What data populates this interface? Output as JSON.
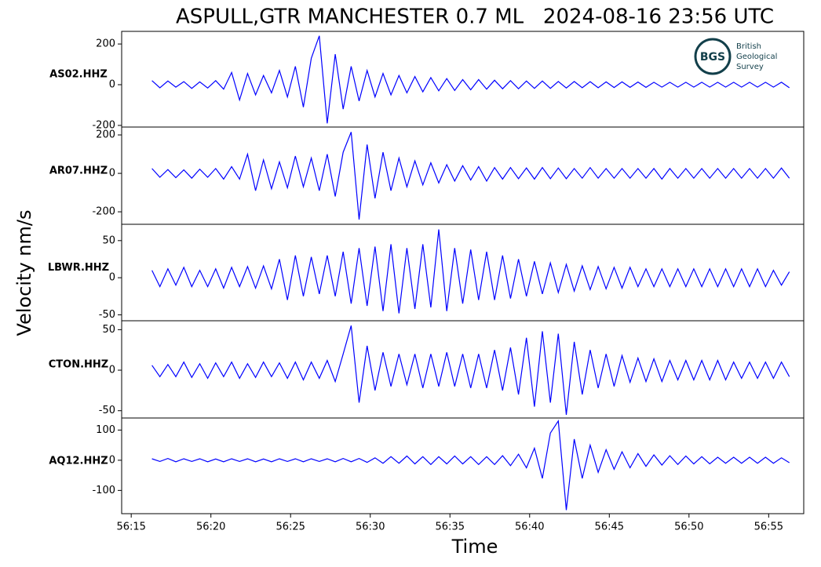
{
  "chart_data": {
    "type": "line",
    "title": "ASPULL,GTR MANCHESTER 0.7 ML   2024-08-16 23:56 UTC",
    "xlabel": "Time",
    "ylabel": "Velocity nm/s",
    "logo": {
      "abbr": "BGS",
      "lines": [
        "British",
        "Geological",
        "Survey"
      ]
    },
    "xlim": [
      14.4,
      57.2
    ],
    "xticks": [
      {
        "value": 15,
        "label": "56:15"
      },
      {
        "value": 20,
        "label": "56:20"
      },
      {
        "value": 25,
        "label": "56:25"
      },
      {
        "value": 30,
        "label": "56:30"
      },
      {
        "value": 35,
        "label": "56:35"
      },
      {
        "value": 40,
        "label": "56:40"
      },
      {
        "value": 45,
        "label": "56:45"
      },
      {
        "value": 50,
        "label": "56:50"
      },
      {
        "value": 55,
        "label": "56:55"
      }
    ],
    "x": [
      16.3,
      16.8,
      17.3,
      17.8,
      18.3,
      18.8,
      19.3,
      19.8,
      20.3,
      20.8,
      21.3,
      21.8,
      22.3,
      22.8,
      23.3,
      23.8,
      24.3,
      24.8,
      25.3,
      25.8,
      26.3,
      26.8,
      27.3,
      27.8,
      28.3,
      28.8,
      29.3,
      29.8,
      30.3,
      30.8,
      31.3,
      31.8,
      32.3,
      32.8,
      33.3,
      33.8,
      34.3,
      34.8,
      35.3,
      35.8,
      36.3,
      36.8,
      37.3,
      37.8,
      38.3,
      38.8,
      39.3,
      39.8,
      40.3,
      40.8,
      41.3,
      41.8,
      42.3,
      42.8,
      43.3,
      43.8,
      44.3,
      44.8,
      45.3,
      45.8,
      46.3,
      46.8,
      47.3,
      47.8,
      48.3,
      48.8,
      49.3,
      49.8,
      50.3,
      50.8,
      51.3,
      51.8,
      52.3,
      52.8,
      53.3,
      53.8,
      54.3,
      54.8,
      55.3,
      55.8,
      56.3
    ],
    "series": [
      {
        "name": "AS02.HHZ",
        "color": "#0000ff",
        "ylim": [
          -208,
          262
        ],
        "yticks": [
          -200,
          0,
          200
        ],
        "values": [
          20,
          -15,
          18,
          -12,
          15,
          -18,
          14,
          -16,
          20,
          -22,
          60,
          -75,
          55,
          -50,
          45,
          -40,
          70,
          -60,
          90,
          -110,
          130,
          240,
          -190,
          150,
          -120,
          90,
          -80,
          70,
          -60,
          55,
          -50,
          45,
          -40,
          40,
          -35,
          35,
          -30,
          30,
          -28,
          25,
          -25,
          25,
          -22,
          22,
          -20,
          20,
          -20,
          18,
          -18,
          18,
          -18,
          16,
          -16,
          16,
          -15,
          15,
          -15,
          14,
          -14,
          14,
          -13,
          13,
          -13,
          12,
          -12,
          12,
          -12,
          12,
          -12,
          12,
          -12,
          12,
          -12,
          12,
          -12,
          12,
          -12,
          12,
          -12,
          12,
          -15
        ]
      },
      {
        "name": "AR07.HHZ",
        "color": "#0000ff",
        "ylim": [
          -265,
          241
        ],
        "yticks": [
          -200,
          0,
          200
        ],
        "values": [
          25,
          -20,
          20,
          -22,
          18,
          -25,
          22,
          -20,
          25,
          -30,
          35,
          -30,
          100,
          -90,
          70,
          -80,
          60,
          -75,
          90,
          -70,
          80,
          -90,
          100,
          -120,
          110,
          215,
          -240,
          150,
          -130,
          110,
          -90,
          80,
          -70,
          65,
          -60,
          55,
          -50,
          45,
          -40,
          40,
          -35,
          35,
          -40,
          30,
          -30,
          30,
          -28,
          28,
          -30,
          30,
          -28,
          28,
          -28,
          25,
          -25,
          30,
          -25,
          25,
          -25,
          25,
          -25,
          25,
          -25,
          25,
          -30,
          25,
          -25,
          25,
          -25,
          25,
          -25,
          25,
          -25,
          25,
          -25,
          25,
          -25,
          25,
          -25,
          28,
          -25
        ]
      },
      {
        "name": "LBWR.HHZ",
        "color": "#0000ff",
        "ylim": [
          -58,
          72
        ],
        "yticks": [
          -50,
          0,
          50
        ],
        "values": [
          10,
          -12,
          12,
          -10,
          14,
          -12,
          10,
          -12,
          12,
          -14,
          14,
          -12,
          15,
          -14,
          16,
          -15,
          25,
          -30,
          30,
          -25,
          28,
          -22,
          30,
          -25,
          35,
          -35,
          40,
          -38,
          42,
          -45,
          45,
          -48,
          40,
          -42,
          45,
          -40,
          65,
          -45,
          40,
          -35,
          38,
          -30,
          35,
          -30,
          30,
          -28,
          25,
          -25,
          22,
          -22,
          20,
          -20,
          18,
          -18,
          16,
          -16,
          15,
          -15,
          14,
          -14,
          14,
          -12,
          12,
          -12,
          12,
          -12,
          12,
          -12,
          12,
          -12,
          12,
          -12,
          12,
          -12,
          12,
          -12,
          12,
          -12,
          10,
          -10,
          8
        ]
      },
      {
        "name": "CTON.HHZ",
        "color": "#0000ff",
        "ylim": [
          -59,
          61
        ],
        "yticks": [
          -50,
          0,
          50
        ],
        "values": [
          6,
          -8,
          7,
          -8,
          10,
          -9,
          8,
          -10,
          9,
          -8,
          10,
          -10,
          8,
          -9,
          10,
          -8,
          9,
          -10,
          10,
          -12,
          10,
          -10,
          12,
          -14,
          20,
          55,
          -40,
          30,
          -25,
          22,
          -20,
          20,
          -18,
          20,
          -22,
          20,
          -20,
          22,
          -20,
          20,
          -22,
          20,
          -22,
          25,
          -25,
          28,
          -30,
          40,
          -45,
          48,
          -40,
          45,
          -55,
          35,
          -30,
          25,
          -22,
          20,
          -20,
          18,
          -15,
          15,
          -14,
          14,
          -14,
          12,
          -12,
          12,
          -12,
          12,
          -12,
          12,
          -12,
          10,
          -10,
          10,
          -10,
          10,
          -10,
          10,
          -8
        ]
      },
      {
        "name": "AQ12.HHZ",
        "color": "#0000ff",
        "ylim": [
          -177,
          140
        ],
        "yticks": [
          -100,
          0,
          100
        ],
        "values": [
          5,
          -4,
          6,
          -5,
          5,
          -4,
          5,
          -5,
          4,
          -5,
          5,
          -4,
          5,
          -5,
          4,
          -5,
          5,
          -4,
          5,
          -5,
          5,
          -4,
          5,
          -5,
          6,
          -5,
          6,
          -7,
          8,
          -10,
          12,
          -10,
          14,
          -12,
          12,
          -14,
          12,
          -12,
          14,
          -12,
          12,
          -14,
          12,
          -14,
          15,
          -18,
          20,
          -25,
          40,
          -60,
          90,
          130,
          -165,
          70,
          -60,
          50,
          -40,
          35,
          -30,
          28,
          -25,
          22,
          -20,
          18,
          -16,
          15,
          -14,
          14,
          -12,
          12,
          -12,
          10,
          -10,
          10,
          -10,
          10,
          -10,
          10,
          -10,
          8,
          -8
        ]
      }
    ]
  }
}
